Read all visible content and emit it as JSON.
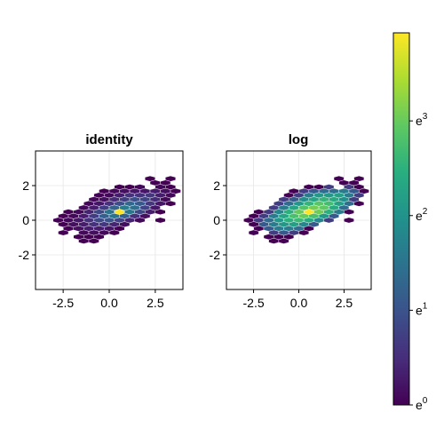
{
  "chart_data": [
    {
      "type": "heatmap",
      "subtype": "hexbin",
      "title": "identity",
      "scale": "identity",
      "xlim": [
        -4,
        4
      ],
      "ylim": [
        -4,
        4
      ],
      "xticks": [
        -2.5,
        0.0,
        2.5
      ],
      "xtick_labels": [
        "-2.5",
        "0.0",
        "2.5"
      ],
      "yticks": [
        -2,
        0,
        2
      ],
      "ytick_labels": [
        "-2",
        "0",
        "2"
      ],
      "grid": true,
      "colormap": "viridis"
    },
    {
      "type": "heatmap",
      "subtype": "hexbin",
      "title": "log",
      "scale": "log",
      "xlim": [
        -4,
        4
      ],
      "ylim": [
        -4,
        4
      ],
      "xticks": [
        -2.5,
        0.0,
        2.5
      ],
      "xtick_labels": [
        "-2.5",
        "0.0",
        "2.5"
      ],
      "yticks": [
        -2,
        0,
        2
      ],
      "ytick_labels": [
        "-2",
        "0",
        "2"
      ],
      "grid": true,
      "colormap": "viridis"
    }
  ],
  "hex_counts": {
    "hex_size": 0.32,
    "cells": [
      [
        -1,
        10,
        1
      ],
      [
        1,
        10,
        1
      ],
      [
        0,
        9,
        1
      ],
      [
        1,
        9,
        1
      ],
      [
        -3,
        8,
        1
      ],
      [
        -2,
        8,
        1
      ],
      [
        -1,
        8,
        2
      ],
      [
        1,
        8,
        2
      ],
      [
        2,
        8,
        1
      ],
      [
        -4,
        7,
        1
      ],
      [
        -3,
        7,
        2
      ],
      [
        -2,
        7,
        3
      ],
      [
        -1,
        7,
        4
      ],
      [
        0,
        7,
        4
      ],
      [
        1,
        7,
        5
      ],
      [
        2,
        7,
        3
      ],
      [
        3,
        7,
        1
      ],
      [
        -4,
        6,
        1
      ],
      [
        -3,
        6,
        2
      ],
      [
        -2,
        6,
        5
      ],
      [
        -1,
        6,
        8
      ],
      [
        0,
        6,
        8
      ],
      [
        1,
        6,
        9
      ],
      [
        2,
        6,
        5
      ],
      [
        3,
        6,
        2
      ],
      [
        -4,
        5,
        2
      ],
      [
        -3,
        5,
        3
      ],
      [
        -2,
        5,
        7
      ],
      [
        -1,
        5,
        10
      ],
      [
        0,
        5,
        13
      ],
      [
        1,
        5,
        11
      ],
      [
        2,
        5,
        7
      ],
      [
        3,
        5,
        2
      ],
      [
        -4,
        4,
        2
      ],
      [
        -3,
        4,
        4
      ],
      [
        -2,
        4,
        8
      ],
      [
        -1,
        4,
        13
      ],
      [
        0,
        4,
        18
      ],
      [
        1,
        4,
        15
      ],
      [
        2,
        4,
        9
      ],
      [
        3,
        4,
        4
      ],
      [
        4,
        4,
        1
      ],
      [
        -4,
        3,
        2
      ],
      [
        -3,
        3,
        5
      ],
      [
        -2,
        3,
        10
      ],
      [
        -1,
        3,
        17
      ],
      [
        0,
        3,
        22
      ],
      [
        1,
        3,
        19
      ],
      [
        2,
        3,
        11
      ],
      [
        3,
        3,
        4
      ],
      [
        -5,
        2,
        1
      ],
      [
        -4,
        2,
        2
      ],
      [
        -3,
        2,
        6
      ],
      [
        -2,
        2,
        12
      ],
      [
        -1,
        2,
        20
      ],
      [
        0,
        2,
        51
      ],
      [
        1,
        2,
        21
      ],
      [
        2,
        2,
        12
      ],
      [
        3,
        2,
        5
      ],
      [
        4,
        2,
        1
      ],
      [
        -5,
        1,
        1
      ],
      [
        -4,
        1,
        2
      ],
      [
        -3,
        1,
        5
      ],
      [
        -2,
        1,
        10
      ],
      [
        -1,
        1,
        16
      ],
      [
        0,
        1,
        20
      ],
      [
        1,
        1,
        16
      ],
      [
        2,
        1,
        8
      ],
      [
        3,
        1,
        3
      ],
      [
        -5,
        0,
        1
      ],
      [
        -4,
        0,
        2
      ],
      [
        -3,
        0,
        4
      ],
      [
        -2,
        0,
        8
      ],
      [
        -1,
        0,
        12
      ],
      [
        0,
        0,
        14
      ],
      [
        1,
        0,
        11
      ],
      [
        2,
        0,
        6
      ],
      [
        3,
        0,
        2
      ],
      [
        5,
        0,
        1
      ],
      [
        -4,
        -1,
        1
      ],
      [
        -3,
        -1,
        3
      ],
      [
        -2,
        -1,
        5
      ],
      [
        -1,
        -1,
        8
      ],
      [
        0,
        -1,
        9
      ],
      [
        1,
        -1,
        6
      ],
      [
        2,
        -1,
        3
      ],
      [
        -3,
        -2,
        1
      ],
      [
        -2,
        -2,
        3
      ],
      [
        -1,
        -2,
        5
      ],
      [
        0,
        -2,
        5
      ],
      [
        1,
        -2,
        4
      ],
      [
        2,
        -2,
        1
      ],
      [
        -3,
        -3,
        1
      ],
      [
        -1,
        -3,
        2
      ],
      [
        0,
        -3,
        3
      ],
      [
        1,
        -3,
        2
      ],
      [
        2,
        -3,
        1
      ],
      [
        -1,
        -4,
        1
      ],
      [
        0,
        -4,
        1
      ],
      [
        1,
        -4,
        1
      ],
      [
        0,
        -5,
        1
      ],
      [
        1,
        -5,
        1
      ]
    ]
  },
  "colorbar": {
    "colormap": "viridis",
    "range": [
      0,
      3.93
    ],
    "ticks": [
      0,
      1,
      2,
      3
    ],
    "tick_base": "e",
    "tick_exponents": [
      "0",
      "1",
      "2",
      "3"
    ]
  }
}
